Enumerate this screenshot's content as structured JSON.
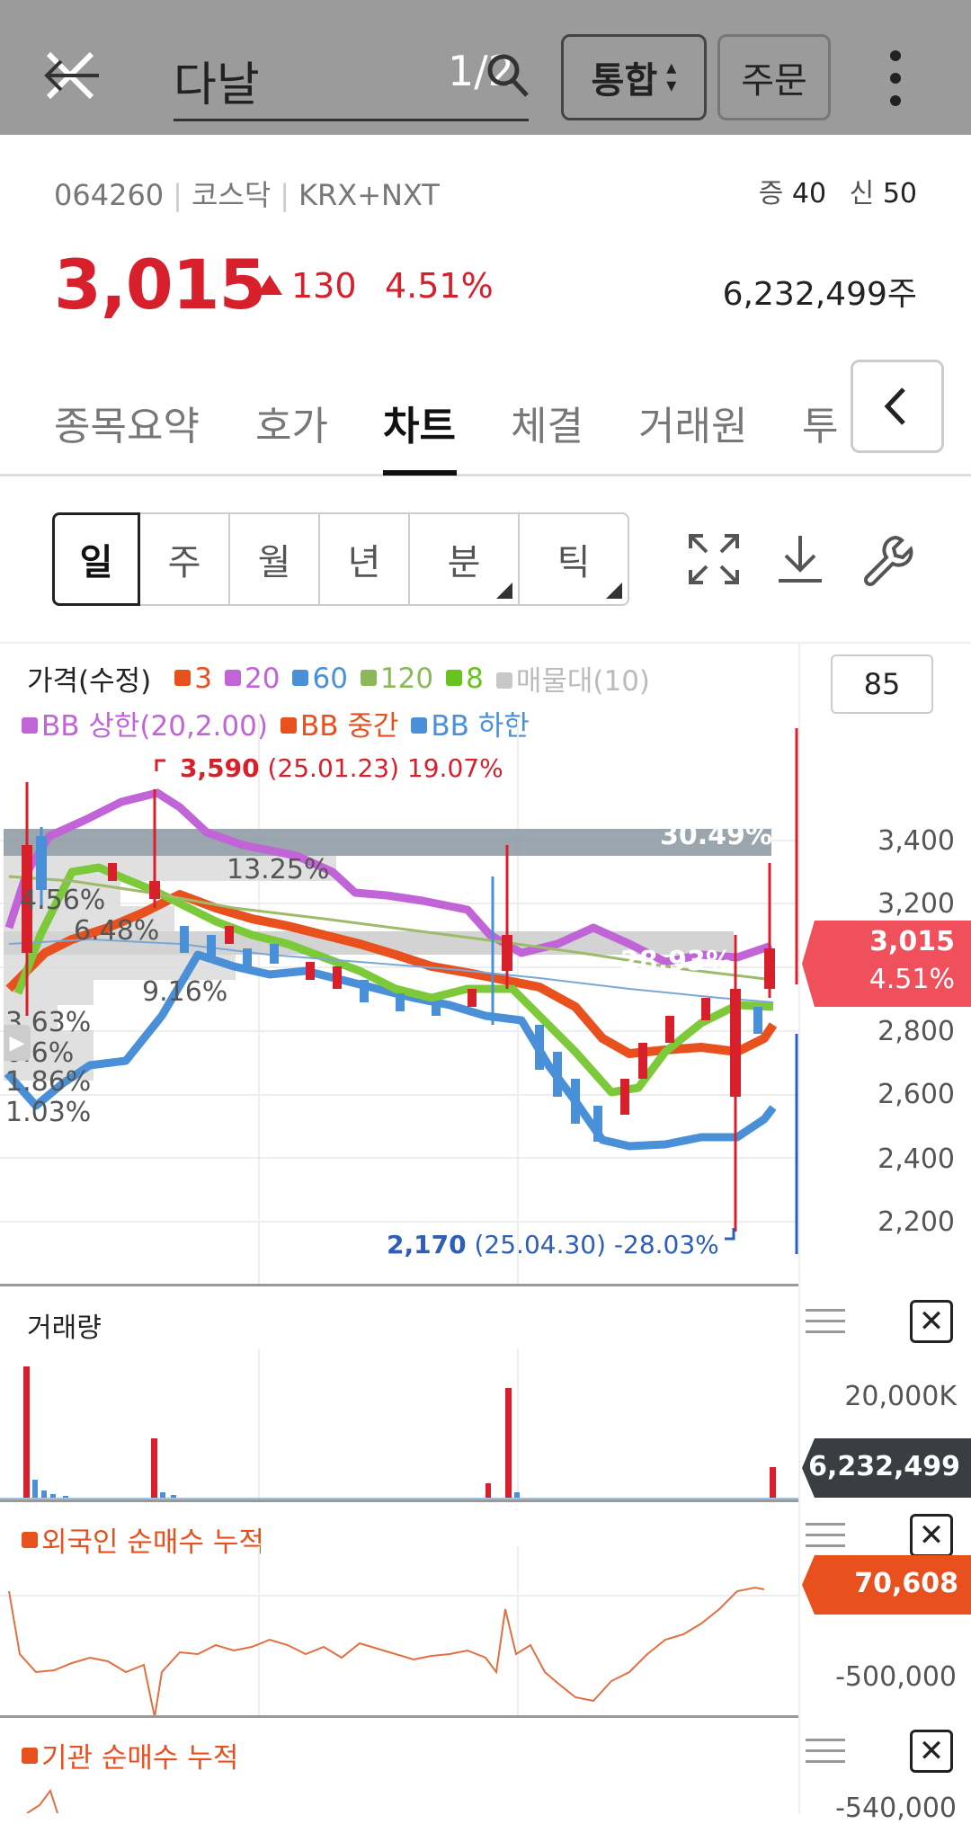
{
  "header": {
    "search_text": "다날",
    "counter": "1/2",
    "market_select": "통합",
    "order_button": "주문"
  },
  "stock": {
    "code": "064260",
    "market": "코스닥",
    "exchange": "KRX+NXT",
    "margin_label_1": "증",
    "margin_val_1": "40",
    "margin_label_2": "신",
    "margin_val_2": "50",
    "price": "3,015",
    "change": "130",
    "change_pct": "4.51%",
    "volume": "6,232,499주",
    "up_color": "#d81f2c"
  },
  "tabs": [
    "종목요약",
    "호가",
    "차트",
    "체결",
    "거래원",
    "투"
  ],
  "active_tab": "차트",
  "periods": [
    "일",
    "주",
    "월",
    "년",
    "분",
    "틱"
  ],
  "active_period": "일",
  "price_pane": {
    "title": "가격(수정)",
    "legend": [
      {
        "label": "3",
        "color": "#e8501e"
      },
      {
        "label": "20",
        "color": "#c064d8"
      },
      {
        "label": "60",
        "color": "#4a90d9"
      },
      {
        "label": "120",
        "color": "#8cb85a"
      },
      {
        "label": "8",
        "color": "#69c21f"
      },
      {
        "label": "매물대(10)",
        "color": "#c8c8c8"
      }
    ],
    "legend2": [
      {
        "label": "BB 상한(20,2.00)",
        "color": "#c064d8"
      },
      {
        "label": "BB 중간",
        "color": "#e8501e"
      },
      {
        "label": "BB 하한",
        "color": "#4a90d9"
      }
    ],
    "count_box": "85",
    "high_value": "3,590",
    "high_info": "(25.01.23) 19.07%",
    "low_value": "2,170",
    "low_info": "(25.04.30) -28.03%",
    "y_ticks": [
      "3,400",
      "3,200",
      "3,000",
      "2,800",
      "2,600",
      "2,400",
      "2,200"
    ],
    "current_price": "3,015",
    "current_pct": "4.51%",
    "volume_profile_pcts": [
      "30.49%",
      "13.25%",
      "4.56%",
      "6.48%",
      "28.93%",
      "9.16%",
      "3.63%",
      "0.6%",
      "1.86%",
      "1.03%"
    ]
  },
  "volume_pane": {
    "title": "거래량",
    "tick": "20,000K",
    "current": "6,232,499"
  },
  "foreign_pane": {
    "title": "외국인 순매수 누적",
    "current": "70,608",
    "tick": "-500,000",
    "color": "#e8501e"
  },
  "inst_pane": {
    "title": "기관 순매수 누적",
    "tick": "-540,000",
    "color": "#e8501e"
  }
}
